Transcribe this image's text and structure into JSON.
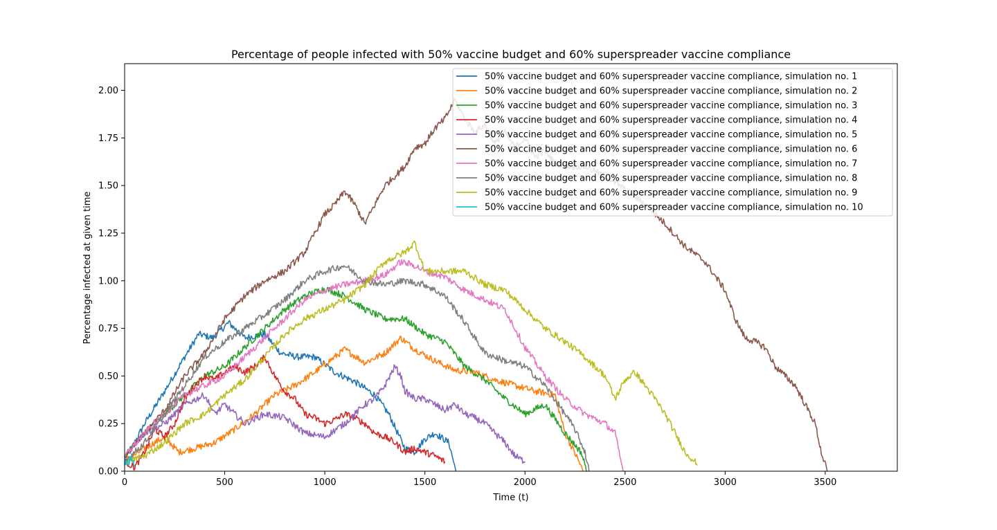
{
  "chart_data": {
    "type": "line",
    "title": "Percentage of people infected with 50% vaccine budget and 60% superspreader vaccine compliance",
    "xlabel": "Time (t)",
    "ylabel": "Percentage infected at given time",
    "xlim": [
      0,
      3860
    ],
    "ylim": [
      0,
      2.14
    ],
    "xticks": [
      "0",
      "500",
      "1000",
      "1500",
      "2000",
      "2500",
      "3000",
      "3500"
    ],
    "yticks": [
      "0.00",
      "0.25",
      "0.50",
      "0.75",
      "1.00",
      "1.25",
      "1.50",
      "1.75",
      "2.00"
    ],
    "grid": false,
    "legend_position": "top-right",
    "series": [
      {
        "name": "50% vaccine budget and 60% superspreader vaccine compliance, simulation no. 1",
        "color": "#1f77b4",
        "points": [
          [
            0,
            0.05
          ],
          [
            100,
            0.25
          ],
          [
            200,
            0.42
          ],
          [
            300,
            0.6
          ],
          [
            370,
            0.72
          ],
          [
            440,
            0.7
          ],
          [
            520,
            0.78
          ],
          [
            600,
            0.7
          ],
          [
            700,
            0.72
          ],
          [
            780,
            0.62
          ],
          [
            860,
            0.6
          ],
          [
            950,
            0.6
          ],
          [
            1050,
            0.52
          ],
          [
            1150,
            0.47
          ],
          [
            1250,
            0.4
          ],
          [
            1320,
            0.3
          ],
          [
            1400,
            0.12
          ],
          [
            1450,
            0.1
          ],
          [
            1500,
            0.17
          ],
          [
            1550,
            0.2
          ],
          [
            1620,
            0.15
          ],
          [
            1655,
            0.0
          ]
        ]
      },
      {
        "name": "50% vaccine budget and 60% superspreader vaccine compliance, simulation no. 2",
        "color": "#ff7f0e",
        "points": [
          [
            0,
            0.05
          ],
          [
            100,
            0.12
          ],
          [
            200,
            0.18
          ],
          [
            270,
            0.1
          ],
          [
            350,
            0.12
          ],
          [
            450,
            0.15
          ],
          [
            550,
            0.22
          ],
          [
            650,
            0.3
          ],
          [
            750,
            0.4
          ],
          [
            850,
            0.45
          ],
          [
            950,
            0.52
          ],
          [
            1050,
            0.6
          ],
          [
            1100,
            0.64
          ],
          [
            1200,
            0.57
          ],
          [
            1300,
            0.62
          ],
          [
            1380,
            0.7
          ],
          [
            1450,
            0.64
          ],
          [
            1550,
            0.58
          ],
          [
            1650,
            0.53
          ],
          [
            1750,
            0.52
          ],
          [
            1850,
            0.48
          ],
          [
            1950,
            0.45
          ],
          [
            2050,
            0.42
          ],
          [
            2150,
            0.4
          ],
          [
            2200,
            0.2
          ],
          [
            2270,
            0.05
          ],
          [
            2290,
            0.0
          ]
        ]
      },
      {
        "name": "50% vaccine budget and 60% superspreader vaccine compliance, simulation no. 3",
        "color": "#2ca02c",
        "points": [
          [
            0,
            0.08
          ],
          [
            100,
            0.2
          ],
          [
            200,
            0.3
          ],
          [
            300,
            0.4
          ],
          [
            400,
            0.5
          ],
          [
            500,
            0.55
          ],
          [
            600,
            0.65
          ],
          [
            700,
            0.75
          ],
          [
            800,
            0.85
          ],
          [
            900,
            0.92
          ],
          [
            1000,
            0.96
          ],
          [
            1100,
            0.92
          ],
          [
            1200,
            0.85
          ],
          [
            1300,
            0.8
          ],
          [
            1400,
            0.8
          ],
          [
            1500,
            0.72
          ],
          [
            1600,
            0.68
          ],
          [
            1700,
            0.55
          ],
          [
            1800,
            0.48
          ],
          [
            1900,
            0.38
          ],
          [
            2000,
            0.3
          ],
          [
            2100,
            0.35
          ],
          [
            2200,
            0.2
          ],
          [
            2280,
            0.1
          ],
          [
            2310,
            0.0
          ]
        ]
      },
      {
        "name": "50% vaccine budget and 60% superspreader vaccine compliance, simulation no. 4",
        "color": "#d62728",
        "points": [
          [
            0,
            0.05
          ],
          [
            50,
            0.02
          ],
          [
            100,
            0.1
          ],
          [
            150,
            0.22
          ],
          [
            200,
            0.18
          ],
          [
            250,
            0.25
          ],
          [
            300,
            0.38
          ],
          [
            350,
            0.45
          ],
          [
            400,
            0.5
          ],
          [
            450,
            0.48
          ],
          [
            500,
            0.52
          ],
          [
            550,
            0.55
          ],
          [
            600,
            0.52
          ],
          [
            650,
            0.55
          ],
          [
            700,
            0.6
          ],
          [
            750,
            0.5
          ],
          [
            800,
            0.42
          ],
          [
            850,
            0.38
          ],
          [
            900,
            0.3
          ],
          [
            950,
            0.28
          ],
          [
            1000,
            0.25
          ],
          [
            1050,
            0.27
          ],
          [
            1100,
            0.3
          ],
          [
            1150,
            0.28
          ],
          [
            1200,
            0.25
          ],
          [
            1250,
            0.2
          ],
          [
            1300,
            0.18
          ],
          [
            1350,
            0.15
          ],
          [
            1400,
            0.1
          ],
          [
            1450,
            0.12
          ],
          [
            1500,
            0.1
          ],
          [
            1550,
            0.08
          ],
          [
            1600,
            0.05
          ]
        ]
      },
      {
        "name": "50% vaccine budget and 60% superspreader vaccine compliance, simulation no. 5",
        "color": "#9467bd",
        "points": [
          [
            0,
            0.08
          ],
          [
            100,
            0.2
          ],
          [
            200,
            0.25
          ],
          [
            300,
            0.35
          ],
          [
            400,
            0.4
          ],
          [
            450,
            0.3
          ],
          [
            500,
            0.35
          ],
          [
            550,
            0.3
          ],
          [
            600,
            0.25
          ],
          [
            700,
            0.3
          ],
          [
            800,
            0.28
          ],
          [
            900,
            0.2
          ],
          [
            1000,
            0.18
          ],
          [
            1100,
            0.25
          ],
          [
            1200,
            0.35
          ],
          [
            1250,
            0.38
          ],
          [
            1300,
            0.45
          ],
          [
            1350,
            0.55
          ],
          [
            1380,
            0.5
          ],
          [
            1400,
            0.42
          ],
          [
            1450,
            0.38
          ],
          [
            1500,
            0.38
          ],
          [
            1550,
            0.35
          ],
          [
            1600,
            0.32
          ],
          [
            1650,
            0.35
          ],
          [
            1700,
            0.3
          ],
          [
            1750,
            0.28
          ],
          [
            1800,
            0.25
          ],
          [
            1850,
            0.2
          ],
          [
            1900,
            0.15
          ],
          [
            1950,
            0.08
          ],
          [
            2000,
            0.05
          ]
        ]
      },
      {
        "name": "50% vaccine budget and 60% superspreader vaccine compliance, simulation no. 6",
        "color": "#8c564b",
        "points": [
          [
            0,
            0.08
          ],
          [
            100,
            0.2
          ],
          [
            200,
            0.32
          ],
          [
            300,
            0.5
          ],
          [
            400,
            0.62
          ],
          [
            500,
            0.8
          ],
          [
            600,
            0.92
          ],
          [
            700,
            1.0
          ],
          [
            800,
            1.05
          ],
          [
            900,
            1.15
          ],
          [
            1000,
            1.35
          ],
          [
            1050,
            1.4
          ],
          [
            1100,
            1.47
          ],
          [
            1150,
            1.4
          ],
          [
            1200,
            1.3
          ],
          [
            1250,
            1.4
          ],
          [
            1300,
            1.5
          ],
          [
            1350,
            1.55
          ],
          [
            1400,
            1.6
          ],
          [
            1450,
            1.7
          ],
          [
            1500,
            1.72
          ],
          [
            1550,
            1.8
          ],
          [
            1600,
            1.85
          ],
          [
            1650,
            1.95
          ],
          [
            1700,
            1.85
          ],
          [
            1750,
            1.78
          ],
          [
            1800,
            1.82
          ],
          [
            1850,
            1.72
          ],
          [
            1900,
            1.78
          ],
          [
            1950,
            1.7
          ],
          [
            2000,
            1.75
          ],
          [
            2050,
            1.65
          ],
          [
            2100,
            1.68
          ],
          [
            2150,
            1.62
          ],
          [
            2200,
            1.6
          ],
          [
            2300,
            1.6
          ],
          [
            2400,
            1.55
          ],
          [
            2500,
            1.48
          ],
          [
            2600,
            1.4
          ],
          [
            2700,
            1.3
          ],
          [
            2800,
            1.18
          ],
          [
            2900,
            1.1
          ],
          [
            3000,
            0.95
          ],
          [
            3050,
            0.8
          ],
          [
            3100,
            0.7
          ],
          [
            3150,
            0.68
          ],
          [
            3200,
            0.65
          ],
          [
            3250,
            0.55
          ],
          [
            3300,
            0.5
          ],
          [
            3350,
            0.45
          ],
          [
            3400,
            0.35
          ],
          [
            3450,
            0.25
          ],
          [
            3480,
            0.1
          ],
          [
            3510,
            0.0
          ]
        ]
      },
      {
        "name": "50% vaccine budget and 60% superspreader vaccine compliance, simulation no. 7",
        "color": "#e377c2",
        "points": [
          [
            0,
            0.08
          ],
          [
            100,
            0.2
          ],
          [
            200,
            0.3
          ],
          [
            300,
            0.4
          ],
          [
            400,
            0.45
          ],
          [
            500,
            0.5
          ],
          [
            600,
            0.6
          ],
          [
            700,
            0.7
          ],
          [
            800,
            0.8
          ],
          [
            900,
            0.9
          ],
          [
            1000,
            0.95
          ],
          [
            1100,
            0.98
          ],
          [
            1200,
            1.0
          ],
          [
            1300,
            1.03
          ],
          [
            1380,
            1.1
          ],
          [
            1450,
            1.08
          ],
          [
            1500,
            1.05
          ],
          [
            1600,
            1.02
          ],
          [
            1700,
            0.95
          ],
          [
            1800,
            0.9
          ],
          [
            1900,
            0.85
          ],
          [
            2000,
            0.65
          ],
          [
            2100,
            0.5
          ],
          [
            2200,
            0.38
          ],
          [
            2300,
            0.3
          ],
          [
            2400,
            0.25
          ],
          [
            2450,
            0.2
          ],
          [
            2490,
            0.0
          ]
        ]
      },
      {
        "name": "50% vaccine budget and 60% superspreader vaccine compliance, simulation no. 8",
        "color": "#7f7f7f",
        "points": [
          [
            0,
            0.05
          ],
          [
            100,
            0.15
          ],
          [
            200,
            0.3
          ],
          [
            300,
            0.45
          ],
          [
            400,
            0.6
          ],
          [
            500,
            0.68
          ],
          [
            600,
            0.75
          ],
          [
            700,
            0.82
          ],
          [
            800,
            0.9
          ],
          [
            900,
            1.0
          ],
          [
            1000,
            1.05
          ],
          [
            1100,
            1.08
          ],
          [
            1200,
            1.0
          ],
          [
            1300,
            0.98
          ],
          [
            1400,
            1.0
          ],
          [
            1500,
            0.98
          ],
          [
            1600,
            0.92
          ],
          [
            1700,
            0.78
          ],
          [
            1800,
            0.62
          ],
          [
            1900,
            0.58
          ],
          [
            2000,
            0.55
          ],
          [
            2100,
            0.45
          ],
          [
            2200,
            0.3
          ],
          [
            2250,
            0.22
          ],
          [
            2300,
            0.1
          ],
          [
            2320,
            0.0
          ]
        ]
      },
      {
        "name": "50% vaccine budget and 60% superspreader vaccine compliance, simulation no. 9",
        "color": "#bcbd22",
        "points": [
          [
            0,
            0.05
          ],
          [
            100,
            0.08
          ],
          [
            200,
            0.15
          ],
          [
            300,
            0.25
          ],
          [
            400,
            0.3
          ],
          [
            500,
            0.4
          ],
          [
            600,
            0.48
          ],
          [
            700,
            0.6
          ],
          [
            800,
            0.72
          ],
          [
            900,
            0.8
          ],
          [
            1000,
            0.85
          ],
          [
            1100,
            0.9
          ],
          [
            1200,
            0.98
          ],
          [
            1300,
            1.1
          ],
          [
            1400,
            1.15
          ],
          [
            1450,
            1.2
          ],
          [
            1500,
            1.05
          ],
          [
            1600,
            1.05
          ],
          [
            1700,
            1.05
          ],
          [
            1800,
            0.98
          ],
          [
            1900,
            0.95
          ],
          [
            2000,
            0.85
          ],
          [
            2100,
            0.75
          ],
          [
            2200,
            0.68
          ],
          [
            2300,
            0.6
          ],
          [
            2400,
            0.5
          ],
          [
            2450,
            0.38
          ],
          [
            2500,
            0.48
          ],
          [
            2550,
            0.52
          ],
          [
            2600,
            0.45
          ],
          [
            2650,
            0.38
          ],
          [
            2700,
            0.3
          ],
          [
            2750,
            0.2
          ],
          [
            2800,
            0.1
          ],
          [
            2850,
            0.05
          ],
          [
            2860,
            0.03
          ]
        ]
      },
      {
        "name": "50% vaccine budget and 60% superspreader vaccine compliance, simulation no. 10",
        "color": "#17becf",
        "points": [
          [
            0,
            0.03
          ],
          [
            10,
            0.06
          ],
          [
            20,
            0.04
          ],
          [
            30,
            0.07
          ],
          [
            40,
            0.05
          ],
          [
            50,
            0.03
          ]
        ]
      }
    ]
  }
}
